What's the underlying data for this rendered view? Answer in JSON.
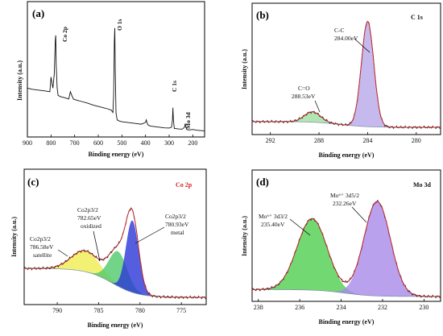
{
  "chart_data": [
    {
      "id": "a",
      "type": "line",
      "panel_label": "(a)",
      "xlabel": "Binding energy (eV)",
      "ylabel": "Intensity (a.u.)",
      "xlim": [
        900,
        150
      ],
      "x_ticks": [
        900,
        800,
        700,
        600,
        500,
        400,
        300,
        200
      ],
      "peak_labels": [
        {
          "text": "Co 2p",
          "x": 781
        },
        {
          "text": "O 1s",
          "x": 531
        },
        {
          "text": "C 1s",
          "x": 284
        },
        {
          "text": "Mo 3d",
          "x": 232
        }
      ],
      "series": [
        {
          "color": "#111111",
          "x": [
            900,
            880,
            860,
            840,
            820,
            805,
            800,
            796,
            792,
            786,
            782,
            780,
            778,
            774,
            770,
            760,
            740,
            725,
            718,
            712,
            705,
            690,
            670,
            650,
            620,
            600,
            580,
            560,
            545,
            538,
            535,
            532,
            530,
            528,
            525,
            520,
            510,
            500,
            480,
            460,
            440,
            420,
            410,
            400,
            397,
            394,
            390,
            380,
            360,
            340,
            320,
            300,
            290,
            286,
            284,
            282,
            278,
            270,
            260,
            245,
            235,
            232,
            229,
            225,
            215,
            200,
            180,
            160,
            150
          ],
          "y": [
            0.36,
            0.35,
            0.345,
            0.34,
            0.335,
            0.33,
            0.45,
            0.4,
            0.36,
            0.48,
            0.75,
            0.79,
            0.55,
            0.36,
            0.3,
            0.29,
            0.28,
            0.27,
            0.33,
            0.3,
            0.27,
            0.26,
            0.25,
            0.24,
            0.22,
            0.21,
            0.2,
            0.19,
            0.18,
            0.16,
            0.3,
            0.74,
            0.85,
            0.5,
            0.16,
            0.1,
            0.09,
            0.085,
            0.08,
            0.075,
            0.07,
            0.065,
            0.07,
            0.08,
            0.1,
            0.08,
            0.06,
            0.05,
            0.045,
            0.04,
            0.035,
            0.033,
            0.04,
            0.1,
            0.2,
            0.1,
            0.03,
            0.028,
            0.026,
            0.024,
            0.04,
            0.07,
            0.04,
            0.02,
            0.018,
            0.022,
            0.015,
            0.012,
            0.01
          ]
        }
      ]
    },
    {
      "id": "b",
      "type": "area",
      "panel_label": "(b)",
      "title": "C 1s",
      "xlabel": "Binding energy (eV)",
      "ylabel": "Intensity (a.u.)",
      "xlim": [
        293.5,
        278
      ],
      "x_ticks": [
        292,
        288,
        284,
        280
      ],
      "annotations": [
        {
          "text": "C-C",
          "x": 284.0
        },
        {
          "text": "284.00eV",
          "x": 284.0
        },
        {
          "text": "C=O",
          "x": 288.53
        },
        {
          "text": "288.53eV",
          "x": 288.53
        }
      ],
      "series": [
        {
          "peak_center": 284.0,
          "peak_fwhm": 1.2,
          "peak_height": 0.92,
          "fill": "#b8a8e8"
        },
        {
          "peak_center": 288.53,
          "peak_fwhm": 1.6,
          "peak_height": 0.09,
          "fill": "#9fdf9f"
        }
      ],
      "background": {
        "left": 0.05,
        "right": 0.0
      }
    },
    {
      "id": "c",
      "type": "area",
      "panel_label": "(c)",
      "title": "Co 2p",
      "xlabel": "Binding energy (eV)",
      "ylabel": "Intensity (a.u.)",
      "xlim": [
        794,
        772
      ],
      "x_ticks": [
        790,
        785,
        780,
        775
      ],
      "annotations": [
        {
          "text": "Co2p3/2",
          "x": 786.58
        },
        {
          "text": "786.58eV",
          "x": 786.58
        },
        {
          "text": "satellite",
          "x": 786.58
        },
        {
          "text": "Co2p3/2",
          "x": 782.65
        },
        {
          "text": "782.65eV",
          "x": 782.65
        },
        {
          "text": "oxidized",
          "x": 782.65
        },
        {
          "text": "Co2p3/2",
          "x": 780.93
        },
        {
          "text": "780.93eV",
          "x": 780.93
        },
        {
          "text": "metal",
          "x": 780.93
        }
      ],
      "series": [
        {
          "peak_center": 786.58,
          "peak_fwhm": 4.0,
          "peak_height": 0.18,
          "fill": "#f0ee50"
        },
        {
          "peak_center": 782.65,
          "peak_fwhm": 2.6,
          "peak_height": 0.3,
          "fill": "#4fc96c"
        },
        {
          "peak_center": 780.93,
          "peak_fwhm": 1.8,
          "peak_height": 0.62,
          "fill": "#2a36d6"
        }
      ],
      "background": {
        "left": 0.27,
        "right": 0.02
      }
    },
    {
      "id": "d",
      "type": "area",
      "panel_label": "(d)",
      "title": "Mo 3d",
      "xlabel": "Binding energy (eV)",
      "ylabel": "Intensity (a.u.)",
      "xlim": [
        238.3,
        229.2
      ],
      "x_ticks": [
        238,
        236,
        234,
        232,
        230
      ],
      "annotations": [
        {
          "text": "Mo⁶⁺ 3d3/2",
          "x": 235.4
        },
        {
          "text": "235.40eV",
          "x": 235.4
        },
        {
          "text": "Mo⁶⁺ 3d5/2",
          "x": 232.26
        },
        {
          "text": "232.26eV",
          "x": 232.26
        }
      ],
      "series": [
        {
          "peak_center": 235.4,
          "peak_fwhm": 1.7,
          "peak_height": 0.62,
          "fill": "#4fcf4f"
        },
        {
          "peak_center": 232.26,
          "peak_fwhm": 1.5,
          "peak_height": 0.82,
          "fill": "#a88ae8"
        }
      ],
      "background": {
        "left": 0.06,
        "right": 0.0
      }
    }
  ]
}
